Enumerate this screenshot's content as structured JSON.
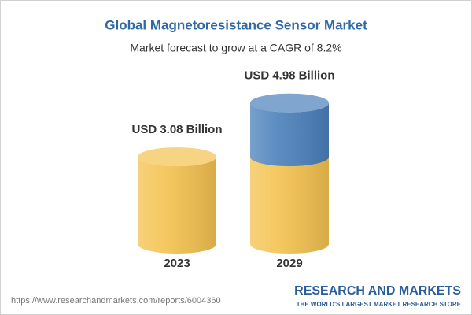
{
  "chart_data": {
    "type": "cylinder",
    "title": "Global Magnetoresistance Sensor Market",
    "subtitle": "Market forecast to grow at a CAGR of 8.2%",
    "categories": [
      "2023",
      "2029"
    ],
    "values": [
      3.08,
      4.98
    ],
    "value_labels": [
      "USD 3.08 Billion",
      "USD 4.98 Billion"
    ],
    "color": "#f4c24f",
    "growth_color": "#4a80bb"
  },
  "footer": {
    "url": "https://www.researchandmarkets.com/reports/6004360",
    "brand": "RESEARCH AND MARKETS",
    "tagline": "THE WORLD'S LARGEST MARKET RESEARCH STORE"
  }
}
